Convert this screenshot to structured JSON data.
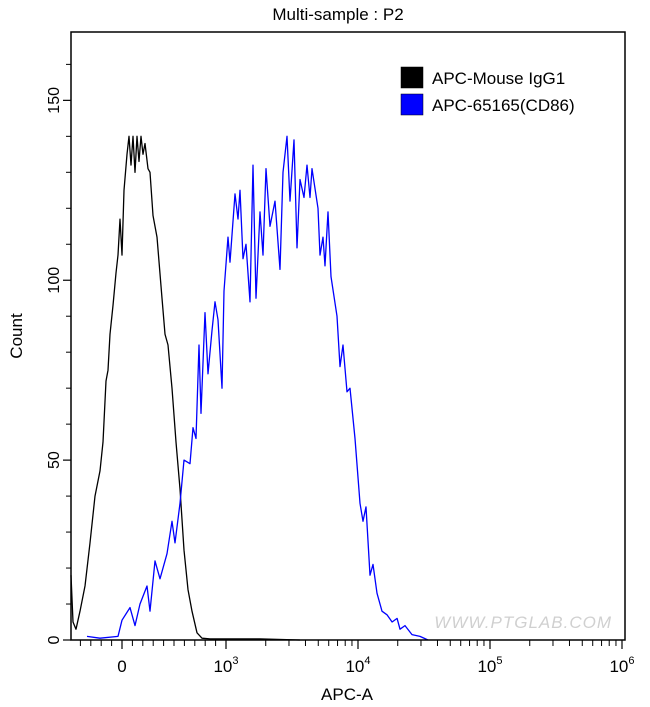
{
  "chart_data": {
    "type": "line",
    "title": "Multi-sample : P2",
    "xlabel": "APC-A",
    "ylabel": "Count",
    "xscale": "biexponential",
    "xlim": [
      -490,
      1000000
    ],
    "ylim": [
      0,
      169
    ],
    "x_ticks": [
      {
        "value": 0,
        "label": "0",
        "sup": ""
      },
      {
        "value": 1000,
        "label": "10",
        "sup": "3"
      },
      {
        "value": 10000,
        "label": "10",
        "sup": "4"
      },
      {
        "value": 100000,
        "label": "10",
        "sup": "5"
      },
      {
        "value": 1000000,
        "label": "10",
        "sup": "6"
      }
    ],
    "y_ticks": [
      {
        "value": 0,
        "label": "0"
      },
      {
        "value": 50,
        "label": "50"
      },
      {
        "value": 100,
        "label": "100"
      },
      {
        "value": 150,
        "label": "150"
      }
    ],
    "y_minor_step": 10,
    "grid": false,
    "legend_position": "top-right",
    "watermark": "WWW.PTGLAB.COM",
    "series": [
      {
        "name": "APC-Mouse IgG1",
        "color": "#000000",
        "points": [
          [
            -490,
            18
          ],
          [
            -471,
            5
          ],
          [
            -442,
            3
          ],
          [
            -404,
            8
          ],
          [
            -356,
            15
          ],
          [
            -308,
            27
          ],
          [
            -260,
            40
          ],
          [
            -212,
            47
          ],
          [
            -183,
            55
          ],
          [
            -154,
            72
          ],
          [
            -135,
            75
          ],
          [
            -115,
            85
          ],
          [
            -87,
            93
          ],
          [
            -58,
            102
          ],
          [
            -38,
            107
          ],
          [
            -19,
            117
          ],
          [
            0,
            107
          ],
          [
            19,
            125
          ],
          [
            48,
            135
          ],
          [
            67,
            140
          ],
          [
            87,
            132
          ],
          [
            106,
            140
          ],
          [
            125,
            130
          ],
          [
            144,
            140
          ],
          [
            163,
            133
          ],
          [
            183,
            140
          ],
          [
            202,
            135
          ],
          [
            221,
            138
          ],
          [
            250,
            131
          ],
          [
            269,
            130
          ],
          [
            298,
            118
          ],
          [
            337,
            112
          ],
          [
            385,
            95
          ],
          [
            413,
            85
          ],
          [
            442,
            82
          ],
          [
            481,
            70
          ],
          [
            519,
            55
          ],
          [
            558,
            42
          ],
          [
            596,
            25
          ],
          [
            635,
            14
          ],
          [
            673,
            8
          ],
          [
            721,
            2
          ],
          [
            769,
            0.5
          ],
          [
            846,
            0.3
          ],
          [
            1811,
            0.3
          ],
          [
            3630,
            0
          ]
        ]
      },
      {
        "name": "APC-65165(CD86)",
        "color": "#0000ff",
        "points": [
          [
            -337,
            1
          ],
          [
            -212,
            0.5
          ],
          [
            -38,
            1
          ],
          [
            0,
            5.5
          ],
          [
            77,
            9
          ],
          [
            125,
            4
          ],
          [
            173,
            10
          ],
          [
            240,
            15
          ],
          [
            269,
            8
          ],
          [
            317,
            22
          ],
          [
            365,
            17
          ],
          [
            433,
            24
          ],
          [
            481,
            33
          ],
          [
            510,
            27
          ],
          [
            558,
            38
          ],
          [
            596,
            50
          ],
          [
            654,
            49
          ],
          [
            683,
            59
          ],
          [
            712,
            56
          ],
          [
            740,
            82
          ],
          [
            760,
            63
          ],
          [
            798,
            91
          ],
          [
            827,
            74
          ],
          [
            865,
            86
          ],
          [
            894,
            94
          ],
          [
            923,
            89
          ],
          [
            962,
            70
          ],
          [
            981,
            97
          ],
          [
            1036,
            112
          ],
          [
            1072,
            105
          ],
          [
            1170,
            124
          ],
          [
            1233,
            117
          ],
          [
            1277,
            125
          ],
          [
            1345,
            106
          ],
          [
            1417,
            110
          ],
          [
            1520,
            94
          ],
          [
            1602,
            132
          ],
          [
            1688,
            95
          ],
          [
            1810,
            119
          ],
          [
            1907,
            107
          ],
          [
            2009,
            131
          ],
          [
            2154,
            115
          ],
          [
            2351,
            122
          ],
          [
            2566,
            103
          ],
          [
            2704,
            130
          ],
          [
            2899,
            140
          ],
          [
            3054,
            122
          ],
          [
            3273,
            139
          ],
          [
            3450,
            109
          ],
          [
            3636,
            128
          ],
          [
            3899,
            123
          ],
          [
            4108,
            132
          ],
          [
            4329,
            123
          ],
          [
            4484,
            131
          ],
          [
            4977,
            120
          ],
          [
            5152,
            107
          ],
          [
            5431,
            112
          ],
          [
            5623,
            104
          ],
          [
            5926,
            119
          ],
          [
            6245,
            101
          ],
          [
            6930,
            90
          ],
          [
            7304,
            76
          ],
          [
            7697,
            82
          ],
          [
            8252,
            69
          ],
          [
            8697,
            70
          ],
          [
            9486,
            56
          ],
          [
            10355,
            38
          ],
          [
            10914,
            33
          ],
          [
            11502,
            37
          ],
          [
            12331,
            18
          ],
          [
            12995,
            21
          ],
          [
            13932,
            13
          ],
          [
            15205,
            8
          ],
          [
            16596,
            7
          ],
          [
            18113,
            5
          ],
          [
            19770,
            6
          ],
          [
            20808,
            3
          ],
          [
            22716,
            4
          ],
          [
            25645,
            1.5
          ],
          [
            29512,
            1
          ],
          [
            33900,
            0
          ]
        ]
      }
    ]
  }
}
